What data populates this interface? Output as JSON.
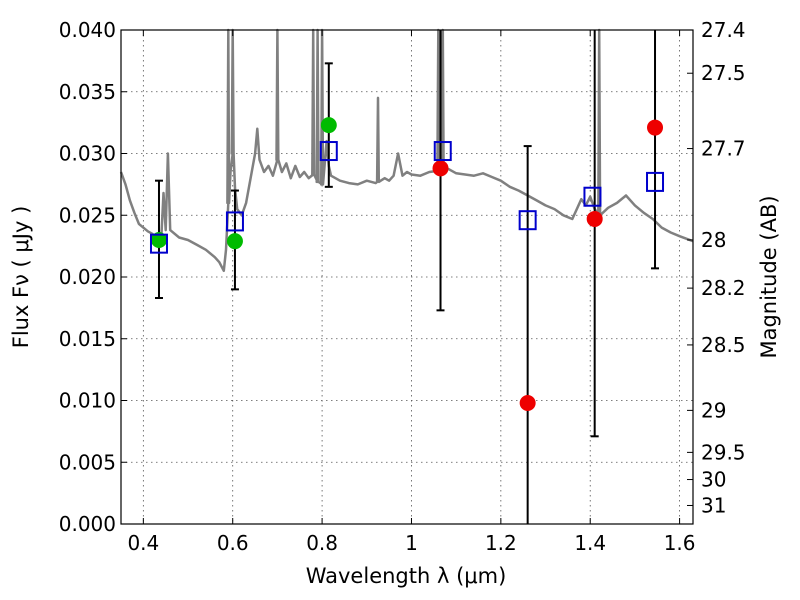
{
  "chart_data": {
    "type": "scatter",
    "xlabel": "Wavelength  λ (μm)",
    "ylabel": "Flux  Fν  ( μJy )",
    "ylabel2": "Magnitude (AB)",
    "xlim": [
      0.35,
      1.63
    ],
    "ylim": [
      0.0,
      0.04
    ],
    "grid": true,
    "xticks": [
      0.4,
      0.6,
      0.8,
      1.0,
      1.2,
      1.4,
      1.6
    ],
    "xtick_labels": [
      "0.4",
      "0.6",
      "0.8",
      "1",
      "1.2",
      "1.4",
      "1.6"
    ],
    "yticks": [
      0.0,
      0.005,
      0.01,
      0.015,
      0.02,
      0.025,
      0.03,
      0.035,
      0.04
    ],
    "ytick_labels": [
      "0.000",
      "0.005",
      "0.010",
      "0.015",
      "0.020",
      "0.025",
      "0.030",
      "0.035",
      "0.040"
    ],
    "mag_ticks": [
      {
        "label": "27.4",
        "flux": 0.04
      },
      {
        "label": "27.5",
        "flux": 0.0365
      },
      {
        "label": "27.7",
        "flux": 0.0304
      },
      {
        "label": "28",
        "flux": 0.023
      },
      {
        "label": "28.2",
        "flux": 0.0191
      },
      {
        "label": "28.5",
        "flux": 0.0145
      },
      {
        "label": "29",
        "flux": 0.0092
      },
      {
        "label": "29.5",
        "flux": 0.0058
      },
      {
        "label": "30",
        "flux": 0.0036
      },
      {
        "label": "31",
        "flux": 0.0015
      }
    ],
    "series": [
      {
        "name": "template spectrum",
        "kind": "line",
        "color": "#808080",
        "x": [
          0.35,
          0.36,
          0.37,
          0.38,
          0.39,
          0.4,
          0.41,
          0.42,
          0.43,
          0.44,
          0.445,
          0.45,
          0.455,
          0.46,
          0.48,
          0.5,
          0.52,
          0.54,
          0.56,
          0.57,
          0.58,
          0.585,
          0.59,
          0.595,
          0.6,
          0.605,
          0.61,
          0.62,
          0.63,
          0.64,
          0.65,
          0.655,
          0.66,
          0.67,
          0.68,
          0.69,
          0.7,
          0.71,
          0.72,
          0.73,
          0.74,
          0.75,
          0.76,
          0.77,
          0.78,
          0.79,
          0.8,
          0.81,
          0.815,
          0.82,
          0.83,
          0.84,
          0.86,
          0.88,
          0.9,
          0.92,
          0.94,
          0.95,
          0.96,
          0.97,
          0.98,
          0.99,
          1.0,
          1.02,
          1.04,
          1.06,
          1.08,
          1.09,
          1.1,
          1.12,
          1.14,
          1.16,
          1.18,
          1.2,
          1.22,
          1.24,
          1.26,
          1.28,
          1.3,
          1.32,
          1.34,
          1.36,
          1.37,
          1.38,
          1.39,
          1.4,
          1.41,
          1.42,
          1.44,
          1.46,
          1.48,
          1.5,
          1.52,
          1.54,
          1.56,
          1.58,
          1.6,
          1.63
        ],
        "y": [
          0.0285,
          0.0275,
          0.0262,
          0.0252,
          0.0243,
          0.024,
          0.0237,
          0.0235,
          0.0232,
          0.023,
          0.0268,
          0.0238,
          0.03,
          0.0238,
          0.0232,
          0.023,
          0.0226,
          0.0222,
          0.0216,
          0.0212,
          0.0205,
          0.0222,
          0.026,
          0.0285,
          0.03,
          0.0272,
          0.0255,
          0.025,
          0.026,
          0.028,
          0.03,
          0.032,
          0.0295,
          0.0285,
          0.029,
          0.0282,
          0.0295,
          0.0285,
          0.0292,
          0.028,
          0.029,
          0.0281,
          0.0285,
          0.028,
          0.0283,
          0.0277,
          0.0275,
          0.031,
          0.029,
          0.0282,
          0.028,
          0.0278,
          0.0276,
          0.0275,
          0.0278,
          0.0276,
          0.028,
          0.0278,
          0.0282,
          0.03,
          0.0282,
          0.0285,
          0.0283,
          0.0282,
          0.0285,
          0.0286,
          0.0288,
          0.0286,
          0.0284,
          0.0283,
          0.0282,
          0.0284,
          0.0281,
          0.0278,
          0.0273,
          0.027,
          0.0266,
          0.0262,
          0.0258,
          0.0255,
          0.025,
          0.0247,
          0.0255,
          0.0263,
          0.0258,
          0.0265,
          0.0255,
          0.025,
          0.0256,
          0.026,
          0.0266,
          0.0258,
          0.0252,
          0.0247,
          0.024,
          0.0236,
          0.0233,
          0.0229
        ]
      },
      {
        "name": "observed photometry (green)",
        "kind": "points",
        "color": "#00bb00",
        "x": [
          0.435,
          0.605,
          0.815
        ],
        "y": [
          0.023,
          0.0229,
          0.0323
        ]
      },
      {
        "name": "observed photometry (red)",
        "kind": "points",
        "color": "#ee0000",
        "x": [
          1.065,
          1.26,
          1.41,
          1.545
        ],
        "y": [
          0.0288,
          0.0098,
          0.0247,
          0.0321
        ]
      },
      {
        "name": "model photometry",
        "kind": "open_squares",
        "color": "#0000cc",
        "x": [
          0.435,
          0.605,
          0.815,
          1.07,
          1.26,
          1.405,
          1.545
        ],
        "y": [
          0.0227,
          0.0245,
          0.0302,
          0.0302,
          0.0246,
          0.0265,
          0.0277
        ]
      }
    ],
    "errorbars": [
      {
        "x": 0.435,
        "low": 0.0183,
        "high": 0.0278
      },
      {
        "x": 0.605,
        "low": 0.019,
        "high": 0.027
      },
      {
        "x": 0.815,
        "low": 0.0273,
        "high": 0.0373
      },
      {
        "x": 1.065,
        "low": 0.0173,
        "high": 0.04
      },
      {
        "x": 1.26,
        "low": 0.0,
        "high": 0.0306
      },
      {
        "x": 1.41,
        "low": 0.0071,
        "high": 0.04
      },
      {
        "x": 1.545,
        "low": 0.0207,
        "high": 0.04
      }
    ],
    "emission_lines": [
      {
        "x": 0.59,
        "peak": 0.04
      },
      {
        "x": 0.6,
        "peak": 0.04
      },
      {
        "x": 0.7,
        "peak": 0.04
      },
      {
        "x": 0.78,
        "peak": 0.04
      },
      {
        "x": 0.79,
        "peak": 0.04
      },
      {
        "x": 0.8,
        "peak": 0.04
      },
      {
        "x": 0.925,
        "peak": 0.0345
      },
      {
        "x": 1.06,
        "peak": 0.04
      },
      {
        "x": 1.07,
        "peak": 0.04
      },
      {
        "x": 1.42,
        "peak": 0.04
      }
    ]
  }
}
